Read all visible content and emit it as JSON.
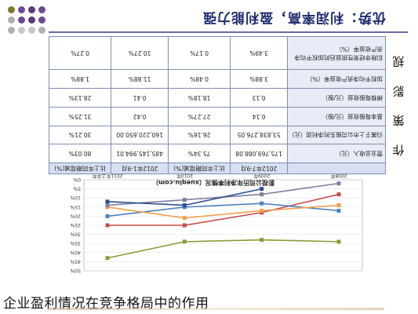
{
  "slide": {
    "title": "优势：利润率高，盈利能力强",
    "side_label_chars": [
      "作",
      "策",
      "影",
      "规"
    ],
    "caption": "企业盈利情况在竞争格局中的作用",
    "dot_colors": [
      "#7a7a2a",
      "#6b4a8f",
      "#5a3a7a",
      "#6b4a8f",
      "#b0b0b0",
      "#6b4a8f",
      "#5a3a7a",
      "#6b4a8f",
      "#b0b0b0",
      "#c8c8c8",
      "#c8c8c8",
      "#b0b0b0"
    ]
  },
  "table": {
    "headers": [
      "",
      "2012年7-9月",
      "比上年同期增减(%)",
      "2012年1-9月",
      "比上年同期增减(%)"
    ],
    "rows": [
      {
        "label": "营业总收入（元）",
        "cells": [
          "175,769,088.08",
          "75.34%",
          "485,145,994.01",
          "80.03%"
        ]
      },
      {
        "label": "归属于上市公司股东的净利润（元）",
        "cells": [
          "53,838,276.05",
          "26.16%",
          "160,220,650.00",
          "30.21%"
        ]
      },
      {
        "label": "基本每股收益（元/股）",
        "cells": [
          "0.14",
          "27.27%",
          "0.42",
          "31.25%"
        ]
      },
      {
        "label": "稀释每股收益（元/股）",
        "cells": [
          "0.13",
          "18.18%",
          "0.41",
          "28.13%"
        ]
      },
      {
        "label": "加权平均净资产收益率（%）",
        "cells": [
          "3.88%",
          "0.48%",
          "11.88%",
          "1.88%"
        ]
      },
      {
        "label": "扣除非经常性损益后的加权平均净资产收益率（%）",
        "cells": [
          "3.49%",
          "0.17%",
          "10.27%",
          "0.27%"
        ]
      }
    ]
  },
  "chart_data": {
    "type": "line",
    "title": "影视公司历年净利率情况（xueqiu.com）",
    "categories": [
      "2008年",
      "2009年",
      "2010年",
      "2011年上半年"
    ],
    "yticks": [
      "0%",
      "5%",
      "10%",
      "15%",
      "20%",
      "25%",
      "30%",
      "35%",
      "40%",
      "45%",
      "50%"
    ],
    "ylim": [
      0,
      50
    ],
    "series": [
      {
        "color": "#8a9a3a",
        "values": [
          34,
          33,
          34,
          43
        ]
      },
      {
        "color": "#c0504d",
        "values": [
          8,
          18,
          25,
          25
        ]
      },
      {
        "color": "#4f81bd",
        "values": [
          17,
          13,
          15,
          20
        ]
      },
      {
        "color": "#f0a050",
        "values": [
          14,
          17,
          21,
          15
        ]
      },
      {
        "color": "#7f7f9f",
        "values": [
          2,
          8,
          11,
          14
        ]
      },
      {
        "color": "#2f4f8f",
        "values": [
          null,
          5,
          14,
          12
        ]
      }
    ]
  }
}
